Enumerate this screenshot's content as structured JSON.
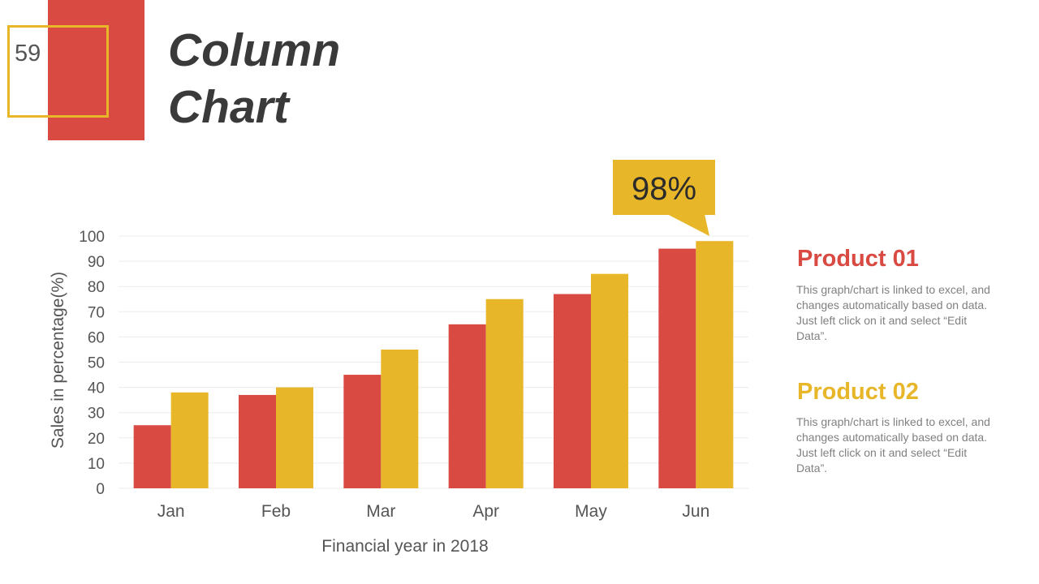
{
  "slide": {
    "page_number": "59",
    "title_line1": "Column",
    "title_line2": "Chart"
  },
  "colors": {
    "red": "#d84a42",
    "yellow": "#e8b629",
    "text": "#555555"
  },
  "callout": {
    "label": "98%"
  },
  "legend": [
    {
      "title": "Product 01",
      "description": "This graph/chart is linked to excel, and changes automatically based on data. Just left click on it and select “Edit Data”."
    },
    {
      "title": "Product 02",
      "description": "This graph/chart is linked to excel, and changes automatically based on data. Just left click on it and select “Edit Data”."
    }
  ],
  "chart_data": {
    "type": "bar",
    "categories": [
      "Jan",
      "Feb",
      "Mar",
      "Apr",
      "May",
      "Jun"
    ],
    "series": [
      {
        "values": [
          25,
          37,
          45,
          65,
          77,
          95
        ]
      },
      {
        "values": [
          38,
          40,
          55,
          75,
          85,
          98
        ]
      }
    ],
    "xlabel": "Financial year in 2018",
    "ylabel": "Sales in percentage(%)",
    "ylim": [
      0,
      100
    ],
    "yticks": [
      0,
      10,
      20,
      30,
      40,
      50,
      60,
      70,
      80,
      90,
      100
    ],
    "grid": true,
    "legend_position": "right"
  }
}
